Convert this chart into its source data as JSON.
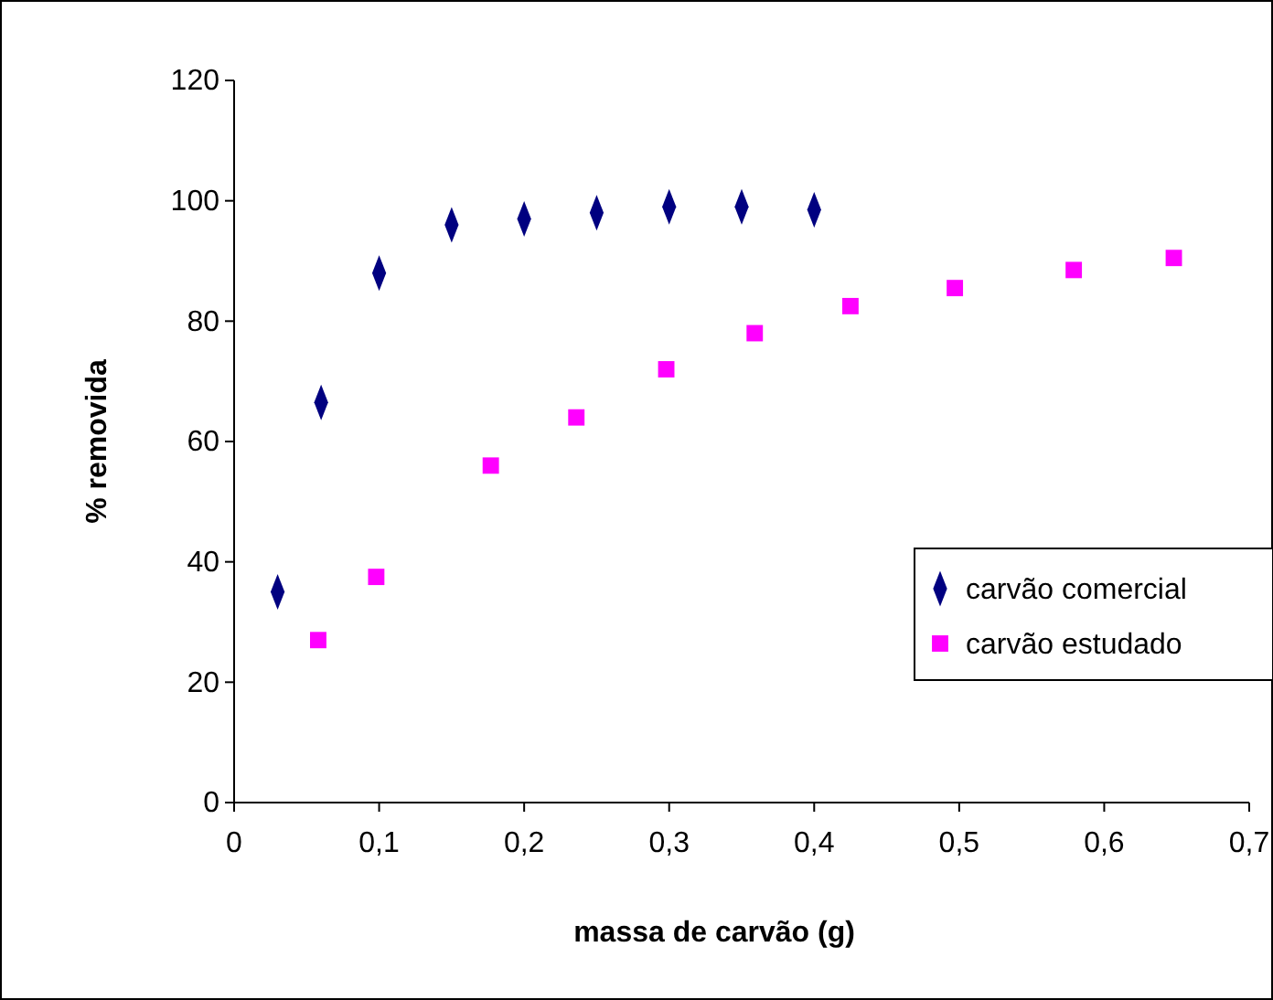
{
  "chart_data": {
    "type": "scatter",
    "xlabel": "massa de carvão (g)",
    "ylabel": "% removida",
    "xlim": [
      0,
      0.7
    ],
    "xticks": [
      0,
      {
        "value": 0.1,
        "label": "0,1"
      },
      {
        "value": 0.2,
        "label": "0,2"
      },
      {
        "value": 0.3,
        "label": "0,3"
      },
      {
        "value": 0.4,
        "label": "0,4"
      },
      {
        "value": 0.5,
        "label": "0,5"
      },
      {
        "value": 0.6,
        "label": "0,6"
      },
      {
        "value": 0.7,
        "label": "0,7"
      }
    ],
    "ylim": [
      0,
      120
    ],
    "yticks": [
      0,
      20,
      40,
      60,
      80,
      100,
      120
    ],
    "grid": false,
    "legend": "right",
    "series": [
      {
        "name": "carvão comercial",
        "color": "#000080",
        "marker": "diamond",
        "x": [
          0.03,
          0.06,
          0.1,
          0.15,
          0.2,
          0.25,
          0.3,
          0.35,
          0.4
        ],
        "values": [
          35,
          66.5,
          88,
          96,
          97,
          98,
          99,
          99,
          98.5
        ]
      },
      {
        "name": "carvão estudado",
        "color": "#ff00ff",
        "marker": "square",
        "x": [
          0.058,
          0.098,
          0.177,
          0.236,
          0.298,
          0.359,
          0.425,
          0.497,
          0.579,
          0.648
        ],
        "values": [
          27,
          37.5,
          56,
          64,
          72,
          78,
          82.5,
          85.5,
          88.5,
          90.5
        ]
      }
    ]
  }
}
